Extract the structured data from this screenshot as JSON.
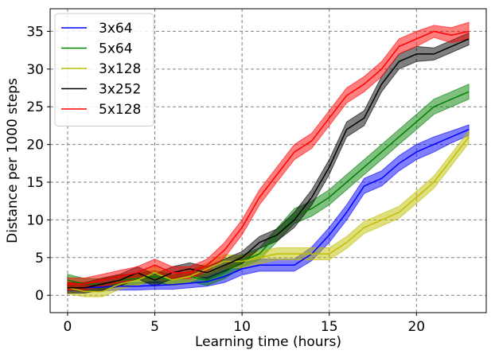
{
  "chart_data": {
    "type": "line",
    "title": "",
    "xlabel": "Learning time (hours)",
    "ylabel": "Distance per 1000 steps",
    "xlim": [
      -1,
      24
    ],
    "ylim": [
      -2.3,
      38
    ],
    "xticks": [
      0,
      5,
      10,
      15,
      20
    ],
    "yticks": [
      0,
      5,
      10,
      15,
      20,
      25,
      30,
      35
    ],
    "grid": true,
    "legend_position": "top-left",
    "x": [
      0,
      1,
      2,
      3,
      4,
      5,
      6,
      7,
      8,
      9,
      10,
      11,
      12,
      13,
      14,
      15,
      16,
      17,
      18,
      19,
      20,
      21,
      22,
      23
    ],
    "series": [
      {
        "name": "3x64",
        "color": "#0000ff",
        "mean": [
          1.0,
          1.0,
          1.1,
          1.2,
          1.2,
          1.3,
          1.4,
          1.6,
          1.8,
          2.5,
          3.5,
          4.0,
          4.0,
          4.0,
          5.5,
          8.0,
          11.0,
          14.5,
          15.5,
          17.5,
          19.0,
          20.0,
          21.0,
          22.0
        ],
        "lower": [
          0.6,
          0.5,
          0.6,
          0.7,
          0.7,
          0.8,
          0.8,
          1.0,
          1.2,
          1.7,
          2.7,
          3.2,
          3.2,
          3.2,
          4.6,
          7.0,
          10.0,
          13.5,
          14.5,
          16.5,
          18.0,
          19.0,
          20.2,
          21.2
        ],
        "upper": [
          1.4,
          1.5,
          1.6,
          1.7,
          1.7,
          1.8,
          2.0,
          2.2,
          2.4,
          3.3,
          4.3,
          4.8,
          4.8,
          4.8,
          6.4,
          9.0,
          12.0,
          15.5,
          16.5,
          18.5,
          20.0,
          21.0,
          21.8,
          22.6
        ]
      },
      {
        "name": "5x64",
        "color": "#008000",
        "mean": [
          2.0,
          1.5,
          1.5,
          2.0,
          2.2,
          2.5,
          2.0,
          2.5,
          2.0,
          3.0,
          4.5,
          5.5,
          8.0,
          10.5,
          11.5,
          13.0,
          15.0,
          17.0,
          19.0,
          21.0,
          23.0,
          25.0,
          26.0,
          27.0
        ],
        "lower": [
          1.2,
          0.8,
          0.8,
          1.3,
          1.5,
          1.7,
          1.3,
          1.8,
          1.3,
          2.2,
          3.7,
          4.7,
          7.1,
          9.5,
          10.5,
          12.0,
          14.0,
          16.0,
          18.0,
          20.0,
          22.0,
          24.0,
          25.0,
          26.0
        ],
        "upper": [
          2.8,
          2.2,
          2.2,
          2.7,
          2.9,
          3.3,
          2.7,
          3.2,
          2.7,
          3.8,
          5.3,
          6.3,
          8.9,
          11.5,
          12.5,
          14.0,
          16.0,
          18.0,
          20.0,
          22.0,
          24.0,
          26.0,
          27.0,
          28.0
        ]
      },
      {
        "name": "3x128",
        "color": "#bfbf00",
        "mean": [
          1.0,
          0.5,
          0.5,
          1.5,
          2.0,
          3.0,
          2.0,
          2.5,
          3.5,
          4.5,
          4.5,
          5.0,
          5.5,
          5.5,
          5.5,
          5.5,
          7.0,
          9.0,
          10.0,
          11.0,
          13.0,
          15.0,
          18.0,
          21.0
        ],
        "lower": [
          0.2,
          -0.2,
          -0.2,
          0.8,
          1.3,
          2.2,
          1.3,
          1.8,
          2.7,
          3.6,
          3.7,
          4.2,
          4.7,
          4.7,
          4.7,
          4.7,
          6.2,
          8.2,
          9.2,
          10.2,
          12.2,
          14.2,
          17.2,
          20.2
        ],
        "upper": [
          1.8,
          1.2,
          1.2,
          2.2,
          2.7,
          3.8,
          2.7,
          3.2,
          4.3,
          5.4,
          5.3,
          5.8,
          6.3,
          6.3,
          6.3,
          6.3,
          7.8,
          9.8,
          10.8,
          11.8,
          13.8,
          15.8,
          18.8,
          21.8
        ]
      },
      {
        "name": "3x252",
        "color": "#000000",
        "mean": [
          1.0,
          1.0,
          1.5,
          2.0,
          3.0,
          2.0,
          3.0,
          3.5,
          3.0,
          4.0,
          5.0,
          7.0,
          8.0,
          10.0,
          13.0,
          17.0,
          22.0,
          23.5,
          28.0,
          31.0,
          32.0,
          32.0,
          33.0,
          34.0
        ],
        "lower": [
          0.3,
          0.3,
          0.7,
          1.2,
          2.2,
          1.2,
          2.2,
          2.7,
          2.2,
          3.2,
          4.2,
          6.2,
          7.2,
          9.0,
          12.0,
          16.0,
          21.0,
          22.5,
          27.0,
          30.0,
          31.0,
          31.2,
          32.2,
          33.2
        ],
        "upper": [
          1.7,
          1.7,
          2.3,
          2.8,
          3.8,
          2.8,
          3.8,
          4.3,
          3.8,
          4.8,
          5.8,
          7.8,
          8.8,
          11.0,
          14.0,
          18.0,
          23.0,
          24.5,
          29.0,
          32.0,
          33.0,
          32.8,
          33.8,
          34.8
        ]
      },
      {
        "name": "5x128",
        "color": "#ff0000",
        "mean": [
          1.5,
          1.5,
          2.0,
          2.5,
          3.0,
          4.0,
          3.0,
          3.0,
          4.0,
          6.0,
          9.0,
          13.0,
          16.0,
          19.0,
          20.5,
          23.5,
          26.5,
          28.0,
          30.0,
          33.0,
          34.0,
          35.0,
          34.5,
          35.0
        ],
        "lower": [
          0.7,
          0.7,
          1.2,
          1.7,
          2.2,
          3.2,
          2.2,
          2.2,
          3.2,
          5.0,
          8.0,
          12.0,
          15.0,
          18.0,
          19.5,
          22.5,
          25.5,
          27.0,
          29.0,
          32.0,
          33.0,
          34.2,
          33.5,
          34.0
        ],
        "upper": [
          2.3,
          2.3,
          2.8,
          3.3,
          3.8,
          4.8,
          3.8,
          3.8,
          4.8,
          7.0,
          10.0,
          14.0,
          17.0,
          20.0,
          21.5,
          24.5,
          27.5,
          29.0,
          31.0,
          34.0,
          35.0,
          35.8,
          35.5,
          36.2
        ]
      }
    ]
  }
}
